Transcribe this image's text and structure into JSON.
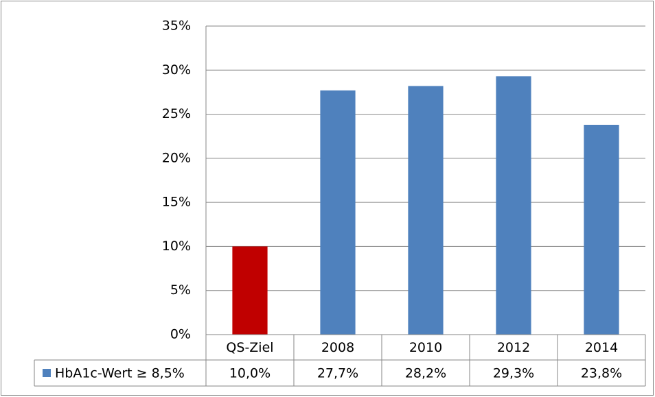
{
  "chart_data": {
    "type": "bar",
    "categories": [
      "QS-Ziel",
      "2008",
      "2010",
      "2012",
      "2014"
    ],
    "series": [
      {
        "name": "HbA1c-Wert ≥ 8,5%",
        "color": "#4f81bd",
        "point_colors": [
          "#c00000",
          "#4f81bd",
          "#4f81bd",
          "#4f81bd",
          "#4f81bd"
        ],
        "values": [
          10.0,
          27.7,
          28.2,
          29.3,
          23.8
        ],
        "value_labels": [
          "10,0%",
          "27,7%",
          "28,2%",
          "29,3%",
          "23,8%"
        ]
      }
    ],
    "ylim": [
      0,
      35
    ],
    "yticks": [
      {
        "value": 0,
        "label": "0%"
      },
      {
        "value": 5,
        "label": "5%"
      },
      {
        "value": 10,
        "label": "10%"
      },
      {
        "value": 15,
        "label": "15%"
      },
      {
        "value": 20,
        "label": "20%"
      },
      {
        "value": 25,
        "label": "25%"
      },
      {
        "value": 30,
        "label": "30%"
      },
      {
        "value": 35,
        "label": "35%"
      }
    ],
    "grid": true,
    "data_table": true
  }
}
